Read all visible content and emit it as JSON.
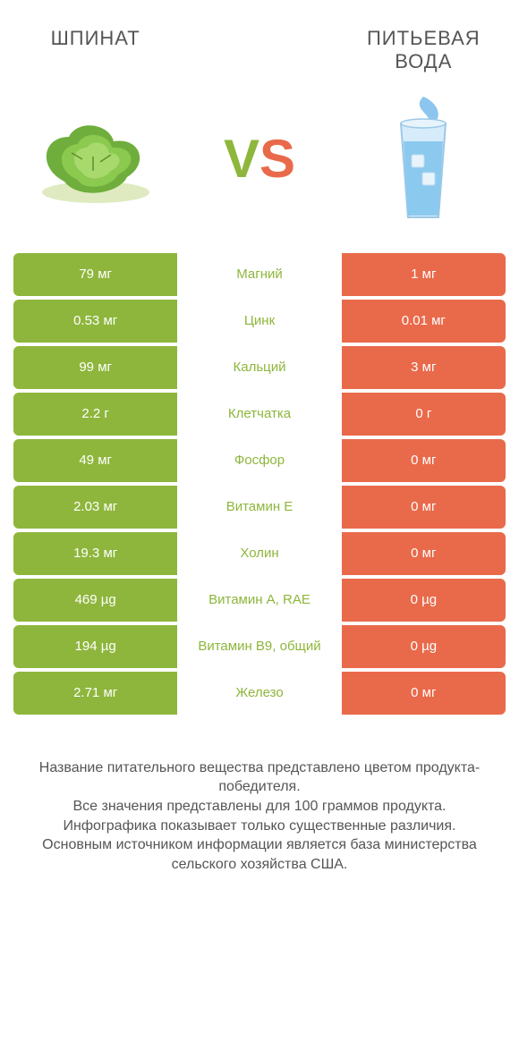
{
  "colors": {
    "left": "#8eb63c",
    "right": "#e96a4a",
    "bg": "#ffffff",
    "text": "#555555"
  },
  "header": {
    "left_title": "ШПИНАТ",
    "right_title": "ПИТЬЕВАЯ ВОДА",
    "vs_v": "V",
    "vs_s": "S"
  },
  "icons": {
    "left": "spinach-icon",
    "right": "water-glass-icon"
  },
  "rows": [
    {
      "left": "79 мг",
      "label": "Магний",
      "right": "1 мг",
      "winner": "left"
    },
    {
      "left": "0.53 мг",
      "label": "Цинк",
      "right": "0.01 мг",
      "winner": "left"
    },
    {
      "left": "99 мг",
      "label": "Кальций",
      "right": "3 мг",
      "winner": "left"
    },
    {
      "left": "2.2 г",
      "label": "Клетчатка",
      "right": "0 г",
      "winner": "left"
    },
    {
      "left": "49 мг",
      "label": "Фосфор",
      "right": "0 мг",
      "winner": "left"
    },
    {
      "left": "2.03 мг",
      "label": "Витамин E",
      "right": "0 мг",
      "winner": "left"
    },
    {
      "left": "19.3 мг",
      "label": "Холин",
      "right": "0 мг",
      "winner": "left"
    },
    {
      "left": "469 µg",
      "label": "Витамин A, RAE",
      "right": "0 µg",
      "winner": "left"
    },
    {
      "left": "194 µg",
      "label": "Витамин B9, общий",
      "right": "0 µg",
      "winner": "left"
    },
    {
      "left": "2.71 мг",
      "label": "Железо",
      "right": "0 мг",
      "winner": "left"
    }
  ],
  "footnote": "Название питательного вещества представлено цветом продукта-победителя.\nВсе значения представлены для 100 граммов продукта.\nИнфографика показывает только существенные различия.\nОсновным источником информации является база министерства сельского хозяйства США."
}
